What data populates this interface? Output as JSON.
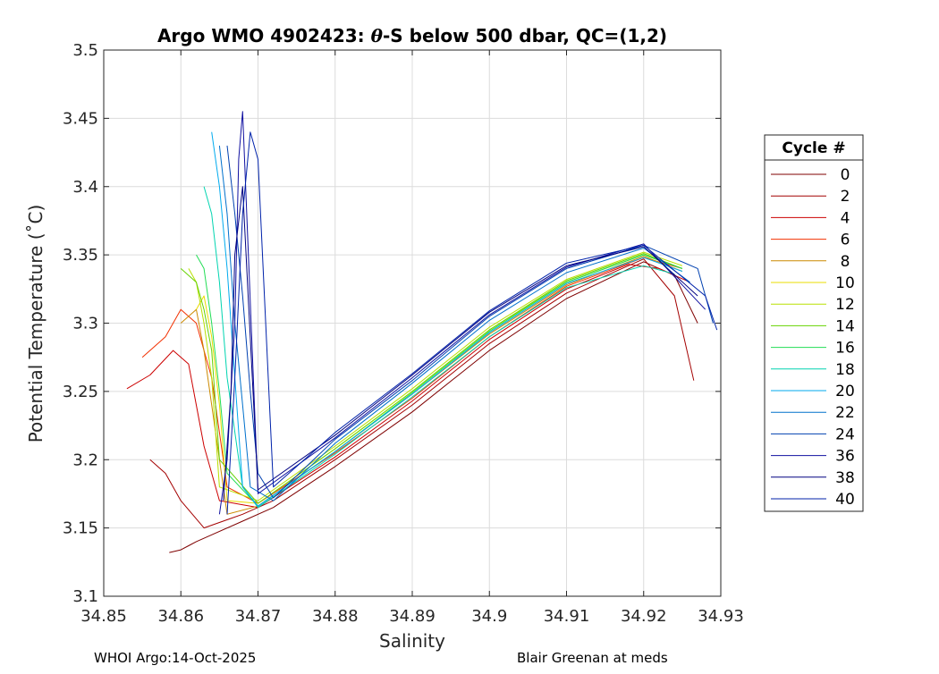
{
  "chart_data": {
    "type": "line",
    "title": "Argo WMO 4902423: θ-S below 500 dbar,  QC=(1,2)",
    "title_parts": {
      "prefix": "Argo WMO 4902423: ",
      "theta": "θ",
      "suffix": "-S below 500 dbar,  QC=(1,2)"
    },
    "xlabel": "Salinity",
    "ylabel": "Potential Temperature (˚C)",
    "xlim": [
      34.85,
      34.93
    ],
    "ylim": [
      3.1,
      3.5
    ],
    "xticks": [
      34.85,
      34.86,
      34.87,
      34.88,
      34.89,
      34.9,
      34.91,
      34.92,
      34.93
    ],
    "xtick_labels": [
      "34.85",
      "34.86",
      "34.87",
      "34.88",
      "34.89",
      "34.9",
      "34.91",
      "34.92",
      "34.93"
    ],
    "yticks": [
      3.1,
      3.15,
      3.2,
      3.25,
      3.3,
      3.35,
      3.4,
      3.45,
      3.5
    ],
    "ytick_labels": [
      "3.1",
      "3.15",
      "3.2",
      "3.25",
      "3.3",
      "3.35",
      "3.4",
      "3.45",
      "3.5"
    ],
    "grid": true,
    "legend_position": "right",
    "legend": {
      "title": "Cycle #",
      "entries": [
        {
          "label": "0",
          "color": "#7f0000"
        },
        {
          "label": "2",
          "color": "#a30000"
        },
        {
          "label": "4",
          "color": "#cc0000"
        },
        {
          "label": "6",
          "color": "#f23000"
        },
        {
          "label": "8",
          "color": "#cc8a00"
        },
        {
          "label": "10",
          "color": "#eadc00"
        },
        {
          "label": "12",
          "color": "#b8e000"
        },
        {
          "label": "14",
          "color": "#66d200"
        },
        {
          "label": "16",
          "color": "#22dd55"
        },
        {
          "label": "18",
          "color": "#00d4b0"
        },
        {
          "label": "20",
          "color": "#00aaee"
        },
        {
          "label": "22",
          "color": "#0070cc"
        },
        {
          "label": "24",
          "color": "#0040b0"
        },
        {
          "label": "36",
          "color": "#1010a0"
        },
        {
          "label": "38",
          "color": "#000080"
        },
        {
          "label": "40",
          "color": "#0022aa"
        }
      ]
    },
    "series": [
      {
        "name": "0",
        "x": [
          34.8585,
          34.86,
          34.861,
          34.862,
          34.864,
          34.868,
          34.872,
          34.88,
          34.89,
          34.9,
          34.91,
          34.92,
          34.924,
          34.927
        ],
        "y": [
          3.132,
          3.134,
          3.137,
          3.14,
          3.145,
          3.155,
          3.165,
          3.195,
          3.235,
          3.28,
          3.318,
          3.345,
          3.335,
          3.3
        ]
      },
      {
        "name": "2",
        "x": [
          34.856,
          34.858,
          34.86,
          34.863,
          34.868,
          34.872,
          34.88,
          34.89,
          34.9,
          34.91,
          34.92,
          34.924,
          34.9265
        ],
        "y": [
          3.2,
          3.19,
          3.17,
          3.15,
          3.16,
          3.17,
          3.2,
          3.24,
          3.285,
          3.322,
          3.347,
          3.32,
          3.258
        ]
      },
      {
        "name": "4",
        "x": [
          34.853,
          34.856,
          34.859,
          34.861,
          34.862,
          34.863,
          34.865,
          34.87,
          34.88,
          34.89,
          34.9,
          34.91,
          34.918,
          34.922,
          34.926
        ],
        "y": [
          3.252,
          3.262,
          3.28,
          3.27,
          3.24,
          3.21,
          3.17,
          3.165,
          3.202,
          3.243,
          3.288,
          3.325,
          3.343,
          3.34,
          3.33
        ]
      },
      {
        "name": "6",
        "x": [
          34.855,
          34.858,
          34.86,
          34.862,
          34.864,
          34.866,
          34.87,
          34.88,
          34.89,
          34.9,
          34.91,
          34.92,
          34.925
        ],
        "y": [
          3.275,
          3.29,
          3.31,
          3.3,
          3.26,
          3.18,
          3.168,
          3.205,
          3.245,
          3.29,
          3.327,
          3.348,
          3.34
        ]
      },
      {
        "name": "8",
        "x": [
          34.86,
          34.862,
          34.863,
          34.864,
          34.865,
          34.866,
          34.87,
          34.88,
          34.89,
          34.9,
          34.91,
          34.92,
          34.925
        ],
        "y": [
          3.3,
          3.31,
          3.28,
          3.24,
          3.2,
          3.16,
          3.166,
          3.206,
          3.248,
          3.292,
          3.328,
          3.349,
          3.338
        ]
      },
      {
        "name": "10",
        "x": [
          34.862,
          34.863,
          34.864,
          34.865,
          34.866,
          34.87,
          34.88,
          34.89,
          34.9,
          34.91,
          34.92,
          34.925
        ],
        "y": [
          3.31,
          3.32,
          3.29,
          3.24,
          3.17,
          3.168,
          3.208,
          3.25,
          3.295,
          3.33,
          3.35,
          3.34
        ]
      },
      {
        "name": "12",
        "x": [
          34.861,
          34.862,
          34.863,
          34.864,
          34.865,
          34.87,
          34.88,
          34.89,
          34.9,
          34.91,
          34.92,
          34.925
        ],
        "y": [
          3.34,
          3.33,
          3.3,
          3.26,
          3.18,
          3.17,
          3.21,
          3.252,
          3.297,
          3.332,
          3.352,
          3.342
        ]
      },
      {
        "name": "14",
        "x": [
          34.86,
          34.862,
          34.863,
          34.864,
          34.865,
          34.87,
          34.88,
          34.89,
          34.9,
          34.91,
          34.92,
          34.925
        ],
        "y": [
          3.34,
          3.33,
          3.31,
          3.28,
          3.2,
          3.168,
          3.208,
          3.25,
          3.295,
          3.331,
          3.351,
          3.34
        ]
      },
      {
        "name": "16",
        "x": [
          34.862,
          34.863,
          34.864,
          34.865,
          34.866,
          34.87,
          34.88,
          34.89,
          34.9,
          34.91,
          34.92,
          34.925
        ],
        "y": [
          3.35,
          3.34,
          3.3,
          3.25,
          3.19,
          3.166,
          3.206,
          3.249,
          3.294,
          3.33,
          3.35,
          3.34
        ]
      },
      {
        "name": "18",
        "x": [
          34.863,
          34.864,
          34.865,
          34.866,
          34.868,
          34.87,
          34.88,
          34.89,
          34.9,
          34.91,
          34.92,
          34.924
        ],
        "y": [
          3.4,
          3.38,
          3.33,
          3.26,
          3.18,
          3.165,
          3.204,
          3.246,
          3.29,
          3.326,
          3.342,
          3.336
        ]
      },
      {
        "name": "20",
        "x": [
          34.864,
          34.865,
          34.866,
          34.867,
          34.868,
          34.87,
          34.88,
          34.89,
          34.9,
          34.91,
          34.92,
          34.925
        ],
        "y": [
          3.44,
          3.4,
          3.34,
          3.26,
          3.18,
          3.166,
          3.206,
          3.248,
          3.293,
          3.329,
          3.348,
          3.338
        ]
      },
      {
        "name": "22",
        "x": [
          34.865,
          34.866,
          34.867,
          34.868,
          34.869,
          34.872,
          34.88,
          34.89,
          34.9,
          34.91,
          34.92,
          34.926
        ],
        "y": [
          3.43,
          3.38,
          3.3,
          3.24,
          3.18,
          3.17,
          3.212,
          3.256,
          3.302,
          3.337,
          3.355,
          3.33
        ]
      },
      {
        "name": "24",
        "x": [
          34.866,
          34.867,
          34.868,
          34.869,
          34.87,
          34.872,
          34.88,
          34.89,
          34.9,
          34.91,
          34.92,
          34.927,
          34.929
        ],
        "y": [
          3.43,
          3.38,
          3.32,
          3.25,
          3.19,
          3.172,
          3.215,
          3.258,
          3.305,
          3.34,
          3.357,
          3.34,
          3.3
        ]
      },
      {
        "name": "36",
        "x": [
          34.865,
          34.866,
          34.867,
          34.8675,
          34.868,
          34.87,
          34.88,
          34.89,
          34.9,
          34.91,
          34.92,
          34.928
        ],
        "y": [
          3.16,
          3.2,
          3.3,
          3.42,
          3.455,
          3.175,
          3.216,
          3.26,
          3.306,
          3.341,
          3.358,
          3.31
        ]
      },
      {
        "name": "38",
        "x": [
          34.8655,
          34.8665,
          34.867,
          34.868,
          34.87,
          34.88,
          34.89,
          34.9,
          34.91,
          34.92,
          34.927
        ],
        "y": [
          3.17,
          3.25,
          3.35,
          3.4,
          3.178,
          3.218,
          3.262,
          3.308,
          3.342,
          3.356,
          3.32
        ]
      },
      {
        "name": "40",
        "x": [
          34.866,
          34.867,
          34.868,
          34.869,
          34.87,
          34.872,
          34.88,
          34.89,
          34.9,
          34.91,
          34.92,
          34.928,
          34.9295
        ],
        "y": [
          3.16,
          3.26,
          3.38,
          3.44,
          3.42,
          3.18,
          3.22,
          3.263,
          3.309,
          3.344,
          3.357,
          3.32,
          3.295
        ]
      }
    ]
  },
  "footer": {
    "left": "WHOI Argo:14-Oct-2025",
    "right": "Blair Greenan at meds"
  }
}
